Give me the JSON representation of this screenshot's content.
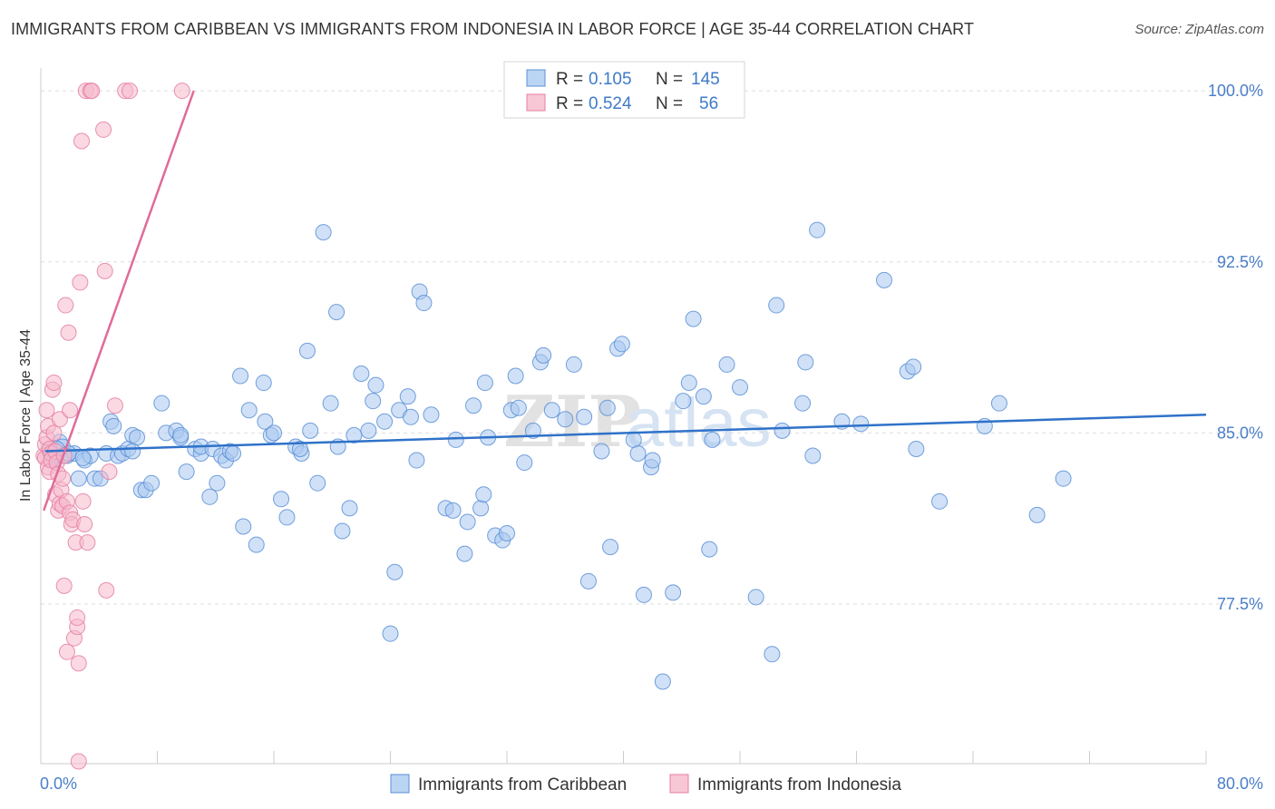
{
  "header": {
    "title": "IMMIGRANTS FROM CARIBBEAN VS IMMIGRANTS FROM INDONESIA IN LABOR FORCE | AGE 35-44 CORRELATION CHART",
    "source": "Source: ZipAtlas.com"
  },
  "watermark": {
    "zip": "ZIP",
    "atlas": "atlas"
  },
  "legend_top": {
    "r_label": "R =",
    "n_label": "N =",
    "rows": [
      {
        "r": "0.105",
        "n": "145",
        "color": "#a9c9f0"
      },
      {
        "r": "0.524",
        "n": "56",
        "color": "#f6b9cc"
      }
    ]
  },
  "colors": {
    "caribbean_fill": "#a9c9f0",
    "caribbean_stroke": "#5b8fd6",
    "caribbean_line": "#2f72c9",
    "indonesia_fill": "#f6b9cc",
    "indonesia_stroke": "#e57fa3",
    "indonesia_line": "#e06b99",
    "tick_label": "#4a7ec8",
    "grid": "#dedede"
  },
  "chart_data": {
    "type": "scatter",
    "title": "IMMIGRANTS FROM CARIBBEAN VS IMMIGRANTS FROM INDONESIA IN LABOR FORCE | AGE 35-44 CORRELATION CHART",
    "xlabel": "",
    "ylabel": "In Labor Force | Age 35-44",
    "xlim": [
      0,
      80
    ],
    "ylim": [
      70.5,
      101.2
    ],
    "x_tick_labels": [
      "0.0%",
      "80.0%"
    ],
    "y_ticks": [
      77.5,
      85.0,
      92.5,
      100.0
    ],
    "y_tick_labels": [
      "77.5%",
      "85.0%",
      "92.5%",
      "100.0%"
    ],
    "grid": "horizontal dashed",
    "legend_position": "bottom-center",
    "series": [
      {
        "name": "Immigrants from Caribbean",
        "R": 0.105,
        "N": 145,
        "trend": {
          "x": [
            0.3,
            80
          ],
          "y": [
            84.2,
            85.8
          ]
        },
        "points": [
          [
            0.6,
            84.2
          ],
          [
            0.9,
            83.8
          ],
          [
            1.0,
            84.0
          ],
          [
            1.3,
            84.6
          ],
          [
            1.5,
            84.4
          ],
          [
            1.8,
            84.0
          ],
          [
            2.3,
            84.1
          ],
          [
            2.6,
            83.0
          ],
          [
            3.0,
            83.8
          ],
          [
            3.7,
            83.0
          ],
          [
            3.4,
            84.0
          ],
          [
            4.5,
            84.1
          ],
          [
            4.8,
            85.5
          ],
          [
            5.0,
            85.3
          ],
          [
            5.3,
            84.0
          ],
          [
            5.6,
            84.1
          ],
          [
            6.0,
            84.3
          ],
          [
            6.3,
            84.9
          ],
          [
            6.6,
            84.8
          ],
          [
            6.9,
            82.5
          ],
          [
            7.2,
            82.5
          ],
          [
            7.6,
            82.8
          ],
          [
            8.3,
            86.3
          ],
          [
            8.6,
            85.0
          ],
          [
            9.3,
            85.1
          ],
          [
            9.6,
            84.8
          ],
          [
            10.0,
            83.3
          ],
          [
            10.6,
            84.3
          ],
          [
            11.0,
            84.1
          ],
          [
            11.6,
            82.2
          ],
          [
            11.0,
            84.4
          ],
          [
            11.8,
            84.3
          ],
          [
            12.1,
            82.8
          ],
          [
            12.4,
            84.0
          ],
          [
            12.7,
            83.8
          ],
          [
            13.0,
            84.2
          ],
          [
            13.2,
            84.1
          ],
          [
            13.7,
            87.5
          ],
          [
            13.9,
            80.9
          ],
          [
            14.3,
            86.0
          ],
          [
            14.8,
            80.1
          ],
          [
            15.4,
            85.5
          ],
          [
            15.8,
            84.9
          ],
          [
            15.3,
            87.2
          ],
          [
            16.5,
            82.1
          ],
          [
            16.9,
            81.3
          ],
          [
            17.5,
            84.4
          ],
          [
            17.9,
            84.1
          ],
          [
            17.8,
            84.3
          ],
          [
            18.3,
            88.6
          ],
          [
            18.5,
            85.1
          ],
          [
            19.0,
            82.8
          ],
          [
            19.4,
            93.8
          ],
          [
            19.9,
            86.3
          ],
          [
            20.3,
            90.3
          ],
          [
            20.7,
            80.7
          ],
          [
            21.2,
            81.7
          ],
          [
            21.5,
            84.9
          ],
          [
            22.0,
            87.6
          ],
          [
            22.5,
            85.1
          ],
          [
            22.8,
            86.4
          ],
          [
            23.0,
            87.1
          ],
          [
            23.6,
            85.5
          ],
          [
            24.3,
            78.9
          ],
          [
            24.0,
            76.2
          ],
          [
            24.6,
            86.0
          ],
          [
            25.2,
            86.6
          ],
          [
            25.4,
            85.7
          ],
          [
            25.8,
            83.8
          ],
          [
            26.0,
            91.2
          ],
          [
            26.3,
            90.7
          ],
          [
            26.8,
            85.8
          ],
          [
            27.8,
            81.7
          ],
          [
            28.3,
            81.6
          ],
          [
            28.5,
            84.7
          ],
          [
            29.1,
            79.7
          ],
          [
            29.3,
            81.1
          ],
          [
            29.7,
            86.2
          ],
          [
            30.2,
            81.7
          ],
          [
            30.4,
            82.3
          ],
          [
            30.5,
            87.2
          ],
          [
            30.7,
            84.8
          ],
          [
            31.2,
            80.5
          ],
          [
            31.7,
            80.3
          ],
          [
            32.0,
            80.6
          ],
          [
            32.3,
            86.0
          ],
          [
            32.6,
            87.5
          ],
          [
            32.8,
            86.1
          ],
          [
            33.2,
            83.7
          ],
          [
            33.8,
            85.1
          ],
          [
            34.3,
            88.1
          ],
          [
            34.5,
            88.4
          ],
          [
            35.1,
            86.0
          ],
          [
            36.0,
            85.6
          ],
          [
            36.6,
            88.0
          ],
          [
            37.3,
            85.7
          ],
          [
            37.6,
            78.5
          ],
          [
            38.5,
            84.2
          ],
          [
            38.9,
            86.1
          ],
          [
            39.1,
            80.0
          ],
          [
            39.6,
            88.7
          ],
          [
            39.9,
            88.9
          ],
          [
            40.7,
            84.7
          ],
          [
            41.0,
            84.1
          ],
          [
            41.4,
            77.9
          ],
          [
            41.9,
            83.5
          ],
          [
            42.0,
            83.8
          ],
          [
            42.7,
            74.1
          ],
          [
            43.4,
            78.0
          ],
          [
            44.1,
            86.4
          ],
          [
            44.5,
            87.2
          ],
          [
            44.8,
            90.0
          ],
          [
            45.5,
            86.6
          ],
          [
            45.9,
            79.9
          ],
          [
            46.1,
            84.7
          ],
          [
            47.1,
            88.0
          ],
          [
            48.0,
            87.0
          ],
          [
            49.1,
            77.8
          ],
          [
            50.5,
            90.6
          ],
          [
            50.9,
            85.1
          ],
          [
            50.2,
            75.3
          ],
          [
            52.3,
            86.3
          ],
          [
            52.5,
            88.1
          ],
          [
            53.0,
            84.0
          ],
          [
            53.3,
            93.9
          ],
          [
            55.0,
            85.5
          ],
          [
            56.3,
            85.4
          ],
          [
            57.9,
            91.7
          ],
          [
            59.5,
            87.7
          ],
          [
            59.9,
            87.9
          ],
          [
            60.1,
            84.3
          ],
          [
            61.7,
            82.0
          ],
          [
            64.8,
            85.3
          ],
          [
            65.8,
            86.3
          ],
          [
            68.4,
            81.4
          ],
          [
            70.2,
            83.0
          ],
          [
            0.8,
            83.9
          ],
          [
            1.1,
            84.3
          ],
          [
            1.9,
            84.1
          ],
          [
            2.9,
            83.9
          ],
          [
            4.1,
            83.0
          ],
          [
            6.3,
            84.2
          ],
          [
            9.6,
            84.9
          ],
          [
            16.0,
            85.0
          ],
          [
            20.4,
            84.4
          ]
        ]
      },
      {
        "name": "Immigrants from Indonesia",
        "R": 0.524,
        "N": 56,
        "trend": {
          "x": [
            0.2,
            10.5
          ],
          "y": [
            81.6,
            100.0
          ]
        },
        "points": [
          [
            0.2,
            84.0
          ],
          [
            0.3,
            84.5
          ],
          [
            0.3,
            83.9
          ],
          [
            0.4,
            86.0
          ],
          [
            0.4,
            84.8
          ],
          [
            0.5,
            85.3
          ],
          [
            0.5,
            83.5
          ],
          [
            0.6,
            84.3
          ],
          [
            0.6,
            83.3
          ],
          [
            0.7,
            84.1
          ],
          [
            0.7,
            83.8
          ],
          [
            0.8,
            86.9
          ],
          [
            0.9,
            87.2
          ],
          [
            0.9,
            85.0
          ],
          [
            1.0,
            84.2
          ],
          [
            1.0,
            82.3
          ],
          [
            1.1,
            83.7
          ],
          [
            1.2,
            83.2
          ],
          [
            1.2,
            81.6
          ],
          [
            1.3,
            85.6
          ],
          [
            1.3,
            81.9
          ],
          [
            1.4,
            82.5
          ],
          [
            1.5,
            81.8
          ],
          [
            1.5,
            83.0
          ],
          [
            1.6,
            78.3
          ],
          [
            1.6,
            84.0
          ],
          [
            1.7,
            90.6
          ],
          [
            1.8,
            75.4
          ],
          [
            1.8,
            82.0
          ],
          [
            1.9,
            89.4
          ],
          [
            2.0,
            86.0
          ],
          [
            2.0,
            81.5
          ],
          [
            2.1,
            81.0
          ],
          [
            2.2,
            81.2
          ],
          [
            2.3,
            76.0
          ],
          [
            2.4,
            80.2
          ],
          [
            2.5,
            76.5
          ],
          [
            2.5,
            76.9
          ],
          [
            2.6,
            74.9
          ],
          [
            2.6,
            70.6
          ],
          [
            2.8,
            97.8
          ],
          [
            2.7,
            91.6
          ],
          [
            2.9,
            82.0
          ],
          [
            3.0,
            81.0
          ],
          [
            3.1,
            100.0
          ],
          [
            3.4,
            100.0
          ],
          [
            3.5,
            100.0
          ],
          [
            3.2,
            80.2
          ],
          [
            4.3,
            98.3
          ],
          [
            4.4,
            92.1
          ],
          [
            4.5,
            78.1
          ],
          [
            4.7,
            83.3
          ],
          [
            5.1,
            86.2
          ],
          [
            5.8,
            100.0
          ],
          [
            6.1,
            100.0
          ],
          [
            9.7,
            100.0
          ]
        ]
      }
    ]
  },
  "legend_bottom": [
    {
      "label": "Immigrants from Caribbean"
    },
    {
      "label": "Immigrants from Indonesia"
    }
  ]
}
